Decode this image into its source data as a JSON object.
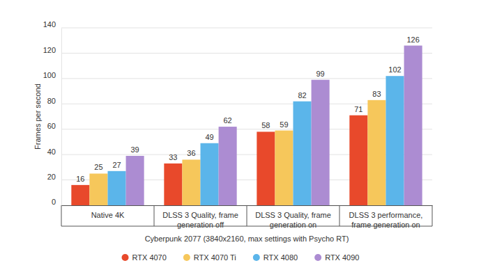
{
  "chart_data": {
    "type": "bar",
    "categories": [
      "Native 4K",
      "DLSS 3 Quality, frame generation off",
      "DLSS 3 Quality, frame generation on",
      "DLSS 3 performance, frame generation on"
    ],
    "series": [
      {
        "name": "RTX 4070",
        "color": "#e8492b",
        "values": [
          16,
          33,
          58,
          71
        ]
      },
      {
        "name": "RTX 4070 Ti",
        "color": "#f6c75b",
        "values": [
          25,
          36,
          59,
          83
        ]
      },
      {
        "name": "RTX 4080",
        "color": "#5bb5ea",
        "values": [
          27,
          49,
          82,
          102
        ]
      },
      {
        "name": "RTX 4090",
        "color": "#ac8cd2",
        "values": [
          39,
          62,
          99,
          126
        ]
      }
    ],
    "x_label": "Cyberpunk 2077 (3840x2160, max settings with Psycho RT)",
    "y_label": "Frames per second",
    "ylim": [
      0,
      140
    ],
    "yticks": [
      0,
      20,
      40,
      60,
      80,
      100,
      120,
      140
    ],
    "grid": true,
    "data_labels": true,
    "legend": "bottom"
  }
}
